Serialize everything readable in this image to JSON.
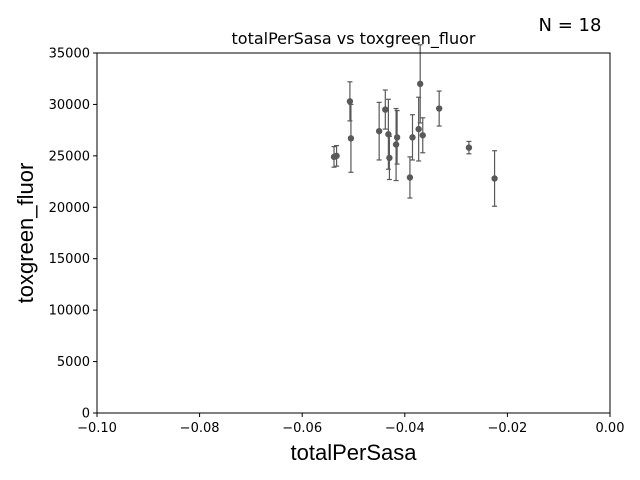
{
  "chart_data": {
    "type": "scatter",
    "title": "totalPerSasa vs toxgreen_fluor",
    "xlabel": "totalPerSasa",
    "ylabel": "toxgreen_fluor",
    "annotation": "N = 18",
    "xlim": [
      -0.1,
      0.0
    ],
    "ylim": [
      0,
      35000
    ],
    "x_ticks": [
      -0.1,
      -0.08,
      -0.06,
      -0.04,
      -0.02,
      0.0
    ],
    "x_tick_labels": [
      "−0.10",
      "−0.08",
      "−0.06",
      "−0.04",
      "−0.02",
      "0.00"
    ],
    "y_ticks": [
      0,
      5000,
      10000,
      15000,
      20000,
      25000,
      30000,
      35000
    ],
    "y_tick_labels": [
      "0",
      "5000",
      "10000",
      "15000",
      "20000",
      "25000",
      "30000",
      "35000"
    ],
    "grid": false,
    "marker_color": "#595959",
    "points": [
      {
        "x": -0.0538,
        "y": 24900,
        "err": 1000
      },
      {
        "x": -0.0533,
        "y": 25000,
        "err": 1000
      },
      {
        "x": -0.0507,
        "y": 30300,
        "err": 1900
      },
      {
        "x": -0.0505,
        "y": 26700,
        "err": 3300
      },
      {
        "x": -0.045,
        "y": 27400,
        "err": 2800
      },
      {
        "x": -0.0438,
        "y": 29500,
        "err": 1900
      },
      {
        "x": -0.0432,
        "y": 27100,
        "err": 3400
      },
      {
        "x": -0.043,
        "y": 24800,
        "err": 2100
      },
      {
        "x": -0.0417,
        "y": 26100,
        "err": 3500
      },
      {
        "x": -0.0415,
        "y": 26800,
        "err": 2600
      },
      {
        "x": -0.039,
        "y": 22900,
        "err": 2000
      },
      {
        "x": -0.0385,
        "y": 26800,
        "err": 2200
      },
      {
        "x": -0.0373,
        "y": 27600,
        "err": 3100
      },
      {
        "x": -0.037,
        "y": 32000,
        "err": 3800
      },
      {
        "x": -0.0365,
        "y": 27000,
        "err": 1700
      },
      {
        "x": -0.0333,
        "y": 29600,
        "err": 1700
      },
      {
        "x": -0.0275,
        "y": 25800,
        "err": 600
      },
      {
        "x": -0.0225,
        "y": 22800,
        "err": 2700
      }
    ]
  }
}
